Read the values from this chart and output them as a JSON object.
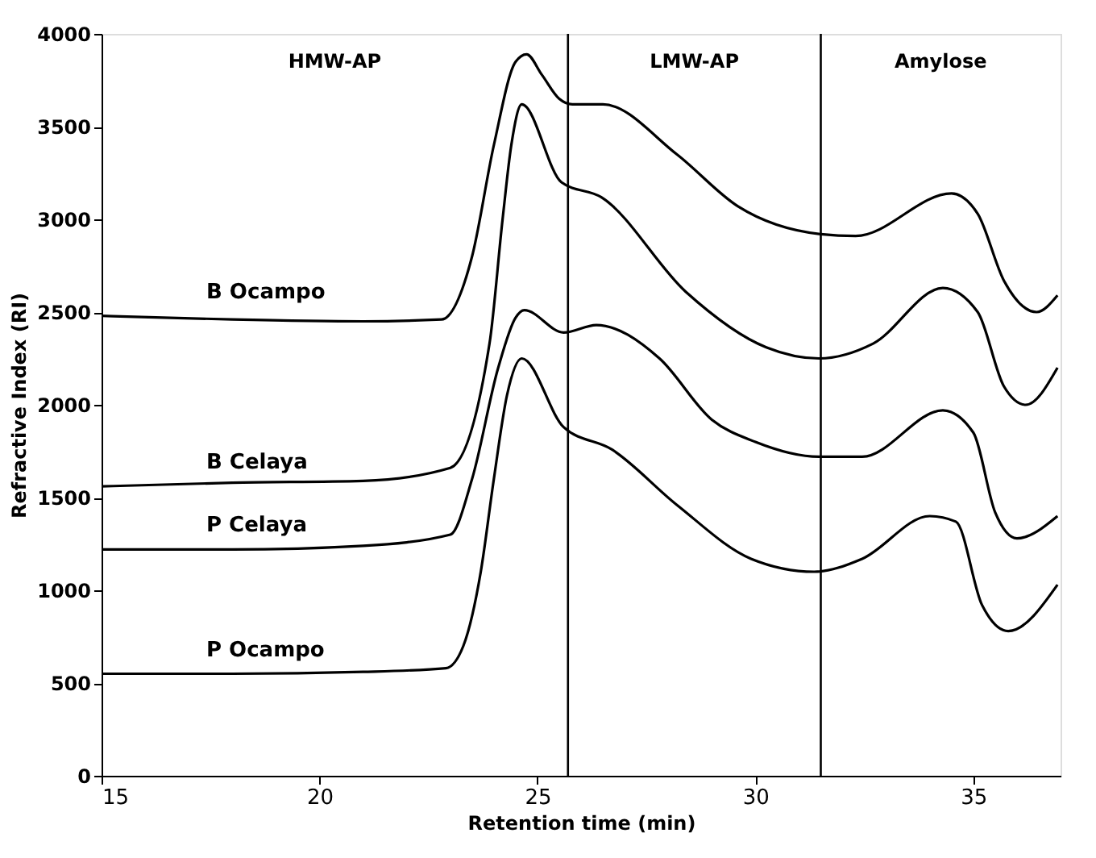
{
  "chart_data": {
    "type": "line",
    "xlabel": "Retention time (min)",
    "ylabel": "Refractive Index (RI)",
    "xlim": [
      15,
      37
    ],
    "xticks": [
      15,
      20,
      25,
      30,
      35
    ],
    "ylim": [
      0,
      4000
    ],
    "yticks": [
      0,
      500,
      1000,
      1500,
      2000,
      2500,
      3000,
      3500,
      4000
    ],
    "grid": false,
    "marker": "none",
    "line_style": "solid",
    "series": [
      {
        "name": "B Ocampo",
        "color": "#000000",
        "x": [
          15,
          18,
          21,
          22.8,
          23.5,
          24.0,
          24.5,
          24.75,
          25.1,
          25.5,
          25.8,
          26.5,
          28.2,
          29.6,
          31.5,
          32.3,
          34.5,
          35.1,
          35.7,
          36.45,
          36.93
        ],
        "values": [
          2480,
          2460,
          2450,
          2460,
          2800,
          3400,
          3850,
          3890,
          3780,
          3650,
          3620,
          3620,
          3350,
          3070,
          2920,
          2910,
          3140,
          3030,
          2670,
          2500,
          2590
        ]
      },
      {
        "name": "B Celaya",
        "color": "#000000",
        "x": [
          15,
          18,
          21,
          23.0,
          23.9,
          24.2,
          24.4,
          24.64,
          25.55,
          26.46,
          28.4,
          30.25,
          31.46,
          32.7,
          34.3,
          35.1,
          35.7,
          36.2,
          36.93
        ],
        "values": [
          1560,
          1580,
          1590,
          1660,
          2330,
          3000,
          3400,
          3620,
          3200,
          3120,
          2610,
          2310,
          2250,
          2330,
          2630,
          2500,
          2100,
          2000,
          2200
        ]
      },
      {
        "name": "P Celaya",
        "color": "#000000",
        "x": [
          15,
          18,
          21,
          23.0,
          23.5,
          24.1,
          24.5,
          24.7,
          25.6,
          26.35,
          27.8,
          29,
          30,
          31.46,
          32.45,
          34.3,
          35,
          35.5,
          36,
          36.93
        ],
        "values": [
          1220,
          1220,
          1240,
          1300,
          1600,
          2200,
          2470,
          2510,
          2390,
          2430,
          2250,
          1920,
          1800,
          1720,
          1720,
          1970,
          1850,
          1420,
          1280,
          1400
        ]
      },
      {
        "name": "P Ocampo",
        "color": "#000000",
        "x": [
          15,
          18,
          21,
          22.9,
          23.3,
          23.7,
          24.0,
          24.3,
          24.64,
          25.6,
          26.7,
          28.2,
          29.9,
          31.35,
          32.45,
          34.0,
          34.6,
          35.2,
          35.8,
          36.93
        ],
        "values": [
          550,
          550,
          560,
          580,
          700,
          1100,
          1600,
          2050,
          2250,
          1880,
          1760,
          1460,
          1170,
          1100,
          1170,
          1400,
          1370,
          920,
          780,
          1030
        ]
      }
    ],
    "ref_lines": [
      {
        "axis": "x",
        "value": 25.7,
        "color": "#000000"
      },
      {
        "axis": "x",
        "value": 31.5,
        "color": "#000000"
      }
    ],
    "annotations": [
      "HMW-AP",
      "LMW-AP",
      "Amylose"
    ]
  }
}
